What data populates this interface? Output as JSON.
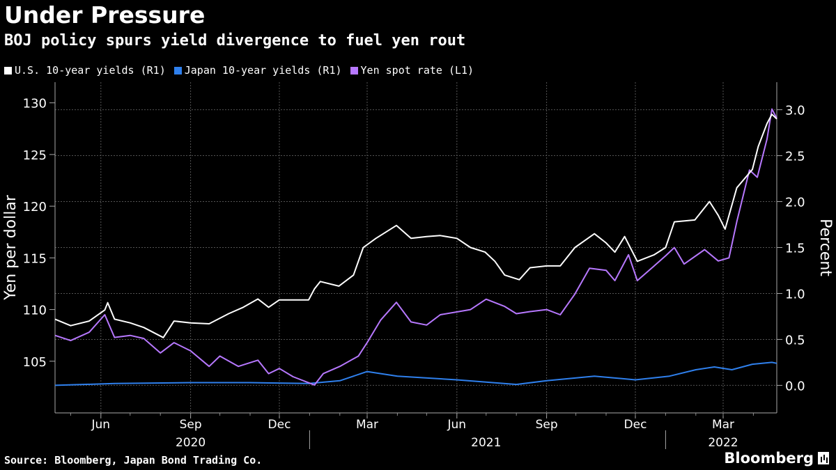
{
  "chart_data": {
    "type": "line",
    "title": "Under Pressure",
    "subtitle": "BOJ policy spurs yield divergence to fuel yen rout",
    "ylabel_left": "Yen per dollar",
    "ylabel_right": "Percent",
    "ylim_left": [
      100,
      132
    ],
    "ylim_right": [
      -0.3,
      3.3
    ],
    "yticks_left": [
      "105",
      "110",
      "115",
      "120",
      "125",
      "130"
    ],
    "yticks_right": [
      "0.0",
      "0.5",
      "1.0",
      "1.5",
      "2.0",
      "2.5",
      "3.0"
    ],
    "x_months": [
      "Jun",
      "Sep",
      "Dec",
      "Mar",
      "Jun",
      "Sep",
      "Dec",
      "Mar"
    ],
    "x_years": [
      "2020",
      "2021",
      "2022"
    ],
    "x_range": [
      "2020-04-15",
      "2022-04-25"
    ],
    "series": [
      {
        "name": "U.S. 10-year yields (R1)",
        "axis": "right",
        "color": "#ffffff",
        "points": [
          [
            "2020-04-15",
            0.72
          ],
          [
            "2020-05-01",
            0.65
          ],
          [
            "2020-05-20",
            0.7
          ],
          [
            "2020-06-05",
            0.82
          ],
          [
            "2020-06-08",
            0.9
          ],
          [
            "2020-06-15",
            0.72
          ],
          [
            "2020-07-01",
            0.68
          ],
          [
            "2020-07-15",
            0.63
          ],
          [
            "2020-08-04",
            0.52
          ],
          [
            "2020-08-15",
            0.7
          ],
          [
            "2020-09-01",
            0.68
          ],
          [
            "2020-09-20",
            0.67
          ],
          [
            "2020-10-10",
            0.78
          ],
          [
            "2020-10-25",
            0.85
          ],
          [
            "2020-11-09",
            0.94
          ],
          [
            "2020-11-20",
            0.85
          ],
          [
            "2020-12-01",
            0.93
          ],
          [
            "2020-12-31",
            0.93
          ],
          [
            "2021-01-06",
            1.05
          ],
          [
            "2021-01-12",
            1.13
          ],
          [
            "2021-01-31",
            1.08
          ],
          [
            "2021-02-15",
            1.2
          ],
          [
            "2021-02-25",
            1.5
          ],
          [
            "2021-03-10",
            1.6
          ],
          [
            "2021-03-31",
            1.74
          ],
          [
            "2021-04-15",
            1.6
          ],
          [
            "2021-05-01",
            1.62
          ],
          [
            "2021-05-15",
            1.63
          ],
          [
            "2021-06-01",
            1.6
          ],
          [
            "2021-06-15",
            1.5
          ],
          [
            "2021-06-30",
            1.45
          ],
          [
            "2021-07-10",
            1.35
          ],
          [
            "2021-07-20",
            1.2
          ],
          [
            "2021-08-04",
            1.15
          ],
          [
            "2021-08-15",
            1.28
          ],
          [
            "2021-09-01",
            1.3
          ],
          [
            "2021-09-15",
            1.3
          ],
          [
            "2021-09-30",
            1.5
          ],
          [
            "2021-10-20",
            1.65
          ],
          [
            "2021-11-01",
            1.55
          ],
          [
            "2021-11-10",
            1.45
          ],
          [
            "2021-11-20",
            1.62
          ],
          [
            "2021-12-03",
            1.35
          ],
          [
            "2021-12-20",
            1.42
          ],
          [
            "2022-01-01",
            1.5
          ],
          [
            "2022-01-10",
            1.78
          ],
          [
            "2022-01-31",
            1.8
          ],
          [
            "2022-02-15",
            2.0
          ],
          [
            "2022-02-24",
            1.85
          ],
          [
            "2022-03-03",
            1.7
          ],
          [
            "2022-03-15",
            2.15
          ],
          [
            "2022-03-31",
            2.35
          ],
          [
            "2022-04-06",
            2.6
          ],
          [
            "2022-04-15",
            2.85
          ],
          [
            "2022-04-20",
            2.95
          ],
          [
            "2022-04-25",
            2.9
          ]
        ]
      },
      {
        "name": "Japan 10-year yields (R1)",
        "axis": "right",
        "color": "#2f80ed",
        "points": [
          [
            "2020-04-15",
            0.0
          ],
          [
            "2020-06-15",
            0.02
          ],
          [
            "2020-09-01",
            0.03
          ],
          [
            "2020-11-01",
            0.03
          ],
          [
            "2020-12-31",
            0.02
          ],
          [
            "2021-02-01",
            0.05
          ],
          [
            "2021-03-01",
            0.15
          ],
          [
            "2021-04-01",
            0.1
          ],
          [
            "2021-06-01",
            0.06
          ],
          [
            "2021-08-01",
            0.01
          ],
          [
            "2021-09-01",
            0.05
          ],
          [
            "2021-10-20",
            0.1
          ],
          [
            "2021-12-01",
            0.06
          ],
          [
            "2022-01-05",
            0.1
          ],
          [
            "2022-02-01",
            0.17
          ],
          [
            "2022-02-20",
            0.2
          ],
          [
            "2022-03-10",
            0.17
          ],
          [
            "2022-03-31",
            0.23
          ],
          [
            "2022-04-20",
            0.25
          ],
          [
            "2022-04-25",
            0.24
          ]
        ]
      },
      {
        "name": "Yen spot rate (L1)",
        "axis": "left",
        "color": "#b778ff",
        "points": [
          [
            "2020-04-15",
            107.5
          ],
          [
            "2020-05-01",
            107
          ],
          [
            "2020-05-20",
            107.8
          ],
          [
            "2020-06-05",
            109.5
          ],
          [
            "2020-06-15",
            107.3
          ],
          [
            "2020-07-01",
            107.5
          ],
          [
            "2020-07-15",
            107.2
          ],
          [
            "2020-08-01",
            105.8
          ],
          [
            "2020-08-15",
            106.8
          ],
          [
            "2020-09-01",
            106
          ],
          [
            "2020-09-20",
            104.5
          ],
          [
            "2020-10-01",
            105.5
          ],
          [
            "2020-10-20",
            104.5
          ],
          [
            "2020-11-09",
            105.1
          ],
          [
            "2020-11-20",
            103.8
          ],
          [
            "2020-12-01",
            104.3
          ],
          [
            "2020-12-15",
            103.5
          ],
          [
            "2021-01-06",
            102.7
          ],
          [
            "2021-01-15",
            103.8
          ],
          [
            "2021-02-01",
            104.5
          ],
          [
            "2021-02-20",
            105.5
          ],
          [
            "2021-03-01",
            106.8
          ],
          [
            "2021-03-15",
            109
          ],
          [
            "2021-03-31",
            110.7
          ],
          [
            "2021-04-15",
            108.8
          ],
          [
            "2021-05-01",
            108.5
          ],
          [
            "2021-05-15",
            109.5
          ],
          [
            "2021-06-15",
            110
          ],
          [
            "2021-07-01",
            111
          ],
          [
            "2021-07-20",
            110.3
          ],
          [
            "2021-08-01",
            109.6
          ],
          [
            "2021-08-15",
            109.8
          ],
          [
            "2021-09-01",
            110
          ],
          [
            "2021-09-15",
            109.5
          ],
          [
            "2021-09-30",
            111.5
          ],
          [
            "2021-10-15",
            114
          ],
          [
            "2021-11-01",
            113.8
          ],
          [
            "2021-11-10",
            112.8
          ],
          [
            "2021-11-24",
            115.3
          ],
          [
            "2021-12-03",
            112.8
          ],
          [
            "2021-12-20",
            114.2
          ],
          [
            "2022-01-01",
            115.2
          ],
          [
            "2022-01-10",
            116
          ],
          [
            "2022-01-20",
            114.4
          ],
          [
            "2022-02-10",
            115.8
          ],
          [
            "2022-02-24",
            114.7
          ],
          [
            "2022-03-07",
            115
          ],
          [
            "2022-03-15",
            118.5
          ],
          [
            "2022-03-28",
            123.5
          ],
          [
            "2022-04-05",
            122.8
          ],
          [
            "2022-04-15",
            126.5
          ],
          [
            "2022-04-20",
            129.4
          ],
          [
            "2022-04-25",
            128.5
          ]
        ]
      }
    ]
  },
  "legend": [
    {
      "label": "U.S. 10-year yields (R1)",
      "color": "#ffffff"
    },
    {
      "label": "Japan 10-year yields (R1)",
      "color": "#2f80ed"
    },
    {
      "label": "Yen spot rate (L1)",
      "color": "#b778ff"
    }
  ],
  "footer": {
    "source": "Source: Bloomberg, Japan Bond Trading Co.",
    "brand": "Bloomberg"
  }
}
